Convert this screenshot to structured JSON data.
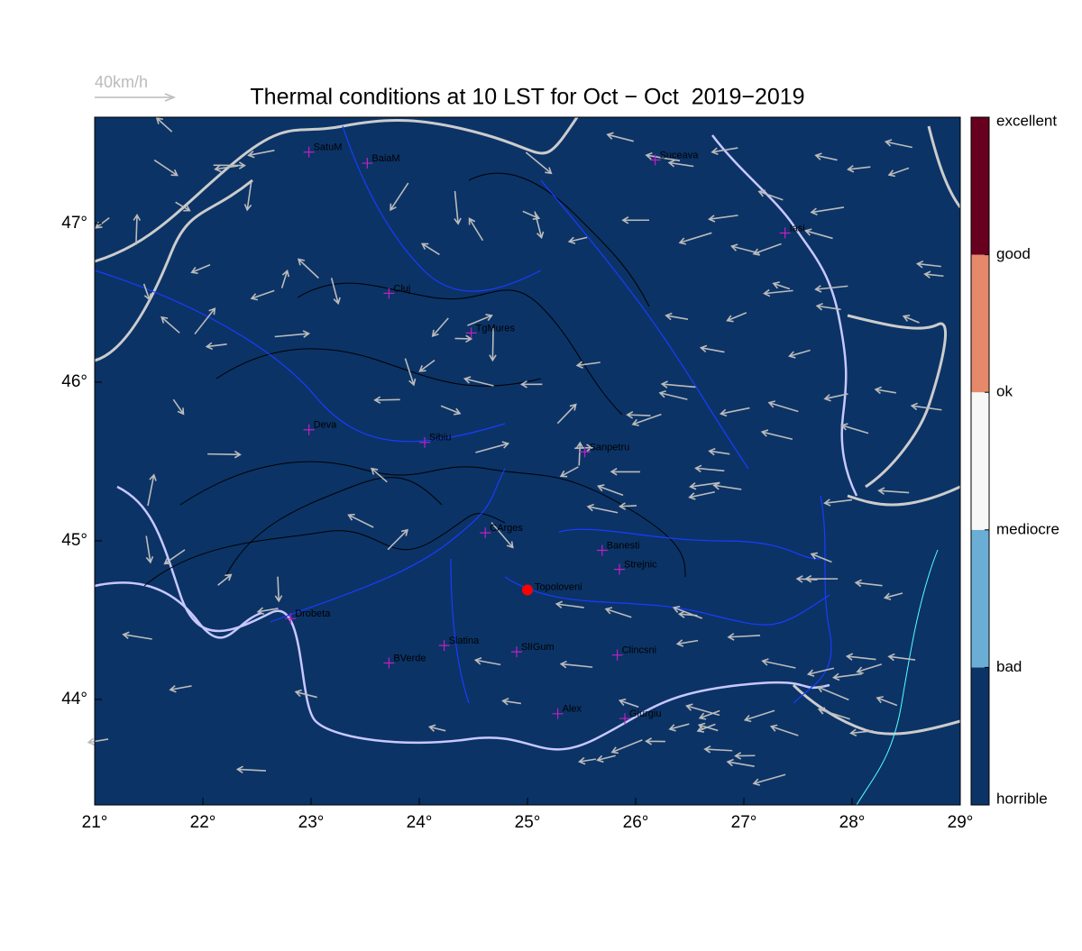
{
  "title": "Thermal conditions at 10 LST for Oct − Oct  2019−2019",
  "wind_scale": {
    "label": "40km/h"
  },
  "map": {
    "xlim": [
      21,
      29
    ],
    "ylim": [
      43.335,
      47.67
    ],
    "background": "#0b3366",
    "xticks": [
      {
        "value": 21,
        "label": "21°"
      },
      {
        "value": 22,
        "label": "22°"
      },
      {
        "value": 23,
        "label": "23°"
      },
      {
        "value": 24,
        "label": "24°"
      },
      {
        "value": 25,
        "label": "25°"
      },
      {
        "value": 26,
        "label": "26°"
      },
      {
        "value": 27,
        "label": "27°"
      },
      {
        "value": 28,
        "label": "28°"
      },
      {
        "value": 29,
        "label": "29°"
      }
    ],
    "yticks": [
      {
        "value": 44,
        "label": "44°"
      },
      {
        "value": 45,
        "label": "45°"
      },
      {
        "value": 46,
        "label": "46°"
      },
      {
        "value": 47,
        "label": "47°"
      }
    ]
  },
  "cities": [
    {
      "label": "SatuM",
      "lon": 22.98,
      "lat": 47.45
    },
    {
      "label": "BaiaM",
      "lon": 23.52,
      "lat": 47.38
    },
    {
      "label": "Suceava",
      "lon": 26.18,
      "lat": 47.4
    },
    {
      "label": "Iasi",
      "lon": 27.38,
      "lat": 46.94
    },
    {
      "label": "Cluj",
      "lon": 23.72,
      "lat": 46.56
    },
    {
      "label": "TgMures",
      "lon": 24.48,
      "lat": 46.31
    },
    {
      "label": "Deva",
      "lon": 22.98,
      "lat": 45.7
    },
    {
      "label": "Sibiu",
      "lon": 24.05,
      "lat": 45.62
    },
    {
      "label": "Sanpetru",
      "lon": 25.53,
      "lat": 45.56
    },
    {
      "label": "CArges",
      "lon": 24.61,
      "lat": 45.05
    },
    {
      "label": "Banesti",
      "lon": 25.69,
      "lat": 44.94
    },
    {
      "label": "Strejnic",
      "lon": 25.85,
      "lat": 44.82
    },
    {
      "label": "Drobeta",
      "lon": 22.81,
      "lat": 44.51
    },
    {
      "label": "Slatina",
      "lon": 24.23,
      "lat": 44.34
    },
    {
      "label": "SlIGum",
      "lon": 24.9,
      "lat": 44.3
    },
    {
      "label": "BVerde",
      "lon": 23.72,
      "lat": 44.23
    },
    {
      "label": "Clincsni",
      "lon": 25.83,
      "lat": 44.28
    },
    {
      "label": "Alex",
      "lon": 25.28,
      "lat": 43.91
    },
    {
      "label": "Giurgiu",
      "lon": 25.9,
      "lat": 43.88
    }
  ],
  "marker": {
    "label": "Topoloveni",
    "lon": 25.0,
    "lat": 44.69,
    "color": "#ff0000"
  },
  "colorbar": {
    "labels": [
      "horrible",
      "bad",
      "mediocre",
      "ok",
      "good",
      "excellent"
    ],
    "colors": [
      "#0b3366",
      "#6aaed6",
      "#f7f7f7",
      "#e5896a",
      "#67001f"
    ]
  }
}
